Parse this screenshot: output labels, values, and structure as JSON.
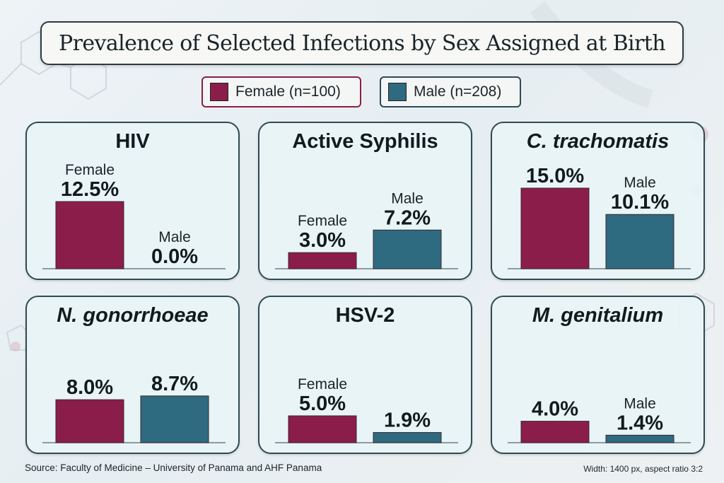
{
  "title": "Prevalence of Selected Infections by Sex Assigned at Birth",
  "legend": [
    {
      "key": "female",
      "label": "Female (n=100)",
      "color": "#8b1d4a"
    },
    {
      "key": "male",
      "label": "Male (n=208)",
      "color": "#2e6a80"
    }
  ],
  "footer": {
    "source": "Source: Faculty of Medicine – University of Panama and AHF Panama",
    "note": "Width: 1400 px, aspect ratio 3:2"
  },
  "chart_data": [
    {
      "type": "bar",
      "title": "HIV",
      "italic": false,
      "categories": [
        "Female",
        "Male"
      ],
      "values": [
        12.5,
        0.0
      ],
      "data_labels": [
        "12.5%",
        "0.0%"
      ],
      "category_labels": [
        "Female",
        "Male"
      ],
      "unit": "%"
    },
    {
      "type": "bar",
      "title": "Active Syphilis",
      "italic": false,
      "categories": [
        "Female",
        "Male"
      ],
      "values": [
        3.0,
        7.2
      ],
      "data_labels": [
        "3.0%",
        "7.2%"
      ],
      "category_labels": [
        "Female",
        "Male"
      ],
      "unit": "%"
    },
    {
      "type": "bar",
      "title": "C. trachomatis",
      "italic": true,
      "categories": [
        "Female",
        "Male"
      ],
      "values": [
        15.0,
        10.1
      ],
      "data_labels": [
        "15.0%",
        "10.1%"
      ],
      "category_labels": [
        "",
        "Male"
      ],
      "unit": "%"
    },
    {
      "type": "bar",
      "title": "N. gonorrhoeae",
      "italic": true,
      "categories": [
        "Female",
        "Male"
      ],
      "values": [
        8.0,
        8.7
      ],
      "data_labels": [
        "8.0%",
        "8.7%"
      ],
      "category_labels": [
        "",
        ""
      ],
      "unit": "%"
    },
    {
      "type": "bar",
      "title": "HSV-2",
      "italic": false,
      "categories": [
        "Female",
        "Male"
      ],
      "values": [
        5.0,
        1.9
      ],
      "data_labels": [
        "5.0%",
        "1.9%"
      ],
      "category_labels": [
        "Female",
        ""
      ],
      "unit": "%"
    },
    {
      "type": "bar",
      "title": "M. genitalium",
      "italic": true,
      "categories": [
        "Female",
        "Male"
      ],
      "values": [
        4.0,
        1.4
      ],
      "data_labels": [
        "4.0%",
        "1.4%"
      ],
      "category_labels": [
        "",
        "Male"
      ],
      "unit": "%"
    }
  ]
}
